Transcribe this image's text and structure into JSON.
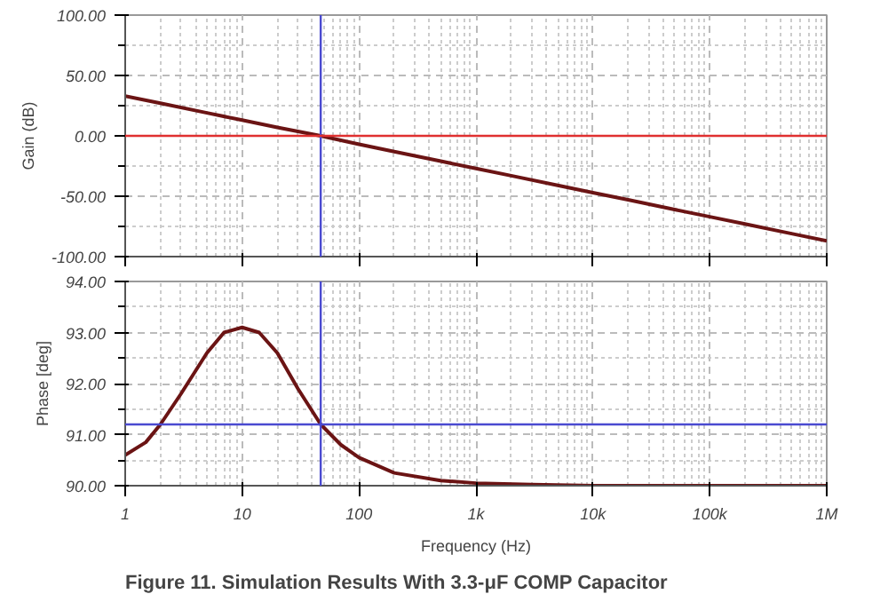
{
  "chart_data": [
    {
      "type": "line",
      "ylabel": "Gain (dB)",
      "log": "x",
      "x": [
        1,
        2,
        5,
        10,
        20,
        47,
        100,
        200,
        500,
        1000,
        2000,
        5000,
        10000,
        20000,
        50000,
        100000,
        200000,
        500000,
        1000000
      ],
      "series": [
        {
          "color": "#6b1414",
          "values": [
            33,
            27,
            19,
            13,
            7,
            0,
            -7,
            -13,
            -21,
            -27,
            -33,
            -41,
            -47,
            -53,
            -61,
            -67,
            -73,
            -81,
            -87
          ]
        }
      ],
      "xlim": [
        1,
        1000000
      ],
      "ylim": [
        -100,
        100
      ],
      "xticks": [
        1,
        10,
        100,
        1000,
        10000,
        100000,
        1000000
      ],
      "yticks": [
        {
          "value": -100,
          "label": "-100.00"
        },
        {
          "value": -50,
          "label": "-50.00"
        },
        {
          "value": 0,
          "label": "0.00"
        },
        {
          "value": 50,
          "label": "50.00"
        },
        {
          "value": 100,
          "label": "100.00"
        }
      ],
      "ref_lines": [
        {
          "axis": "x",
          "value": 47,
          "color": "#4a4ad0"
        },
        {
          "axis": "y",
          "value": 0,
          "color": "#e03030"
        }
      ],
      "grid": true,
      "tick_labels": "y",
      "line_style": "solid"
    },
    {
      "type": "line",
      "xlabel": "Frequency (Hz)",
      "ylabel": "Phase [deg]",
      "log": "x",
      "x": [
        1,
        1.5,
        2,
        3,
        5,
        7,
        10,
        14,
        20,
        30,
        47,
        70,
        100,
        200,
        500,
        1000,
        3000,
        10000,
        100000,
        1000000
      ],
      "series": [
        {
          "color": "#6b1414",
          "values": [
            90.6,
            90.85,
            91.2,
            91.8,
            92.6,
            93.0,
            93.1,
            93.0,
            92.6,
            91.9,
            91.2,
            90.8,
            90.55,
            90.25,
            90.1,
            90.05,
            90.02,
            90.0,
            90.0,
            90.0
          ]
        }
      ],
      "xlim": [
        1,
        1000000
      ],
      "ylim": [
        90,
        94
      ],
      "xticks": [
        {
          "value": 1,
          "label": "1"
        },
        {
          "value": 10,
          "label": "10"
        },
        {
          "value": 100,
          "label": "100"
        },
        {
          "value": 1000,
          "label": "1k"
        },
        {
          "value": 10000,
          "label": "10k"
        },
        {
          "value": 100000,
          "label": "100k"
        },
        {
          "value": 1000000,
          "label": "1M"
        }
      ],
      "yticks": [
        {
          "value": 90,
          "label": "90.00"
        },
        {
          "value": 91,
          "label": "91.00"
        },
        {
          "value": 92,
          "label": "92.00"
        },
        {
          "value": 93,
          "label": "93.00"
        },
        {
          "value": 94,
          "label": "94.00"
        }
      ],
      "ref_lines": [
        {
          "axis": "x",
          "value": 47,
          "color": "#4a4ad0"
        },
        {
          "axis": "y",
          "value": 91.2,
          "color": "#4a4ad0"
        }
      ],
      "annotations": [
        "Figure 11.   Simulation Results With 3.3-μF COMP Capacitor"
      ],
      "grid": true,
      "line_style": "solid"
    }
  ]
}
